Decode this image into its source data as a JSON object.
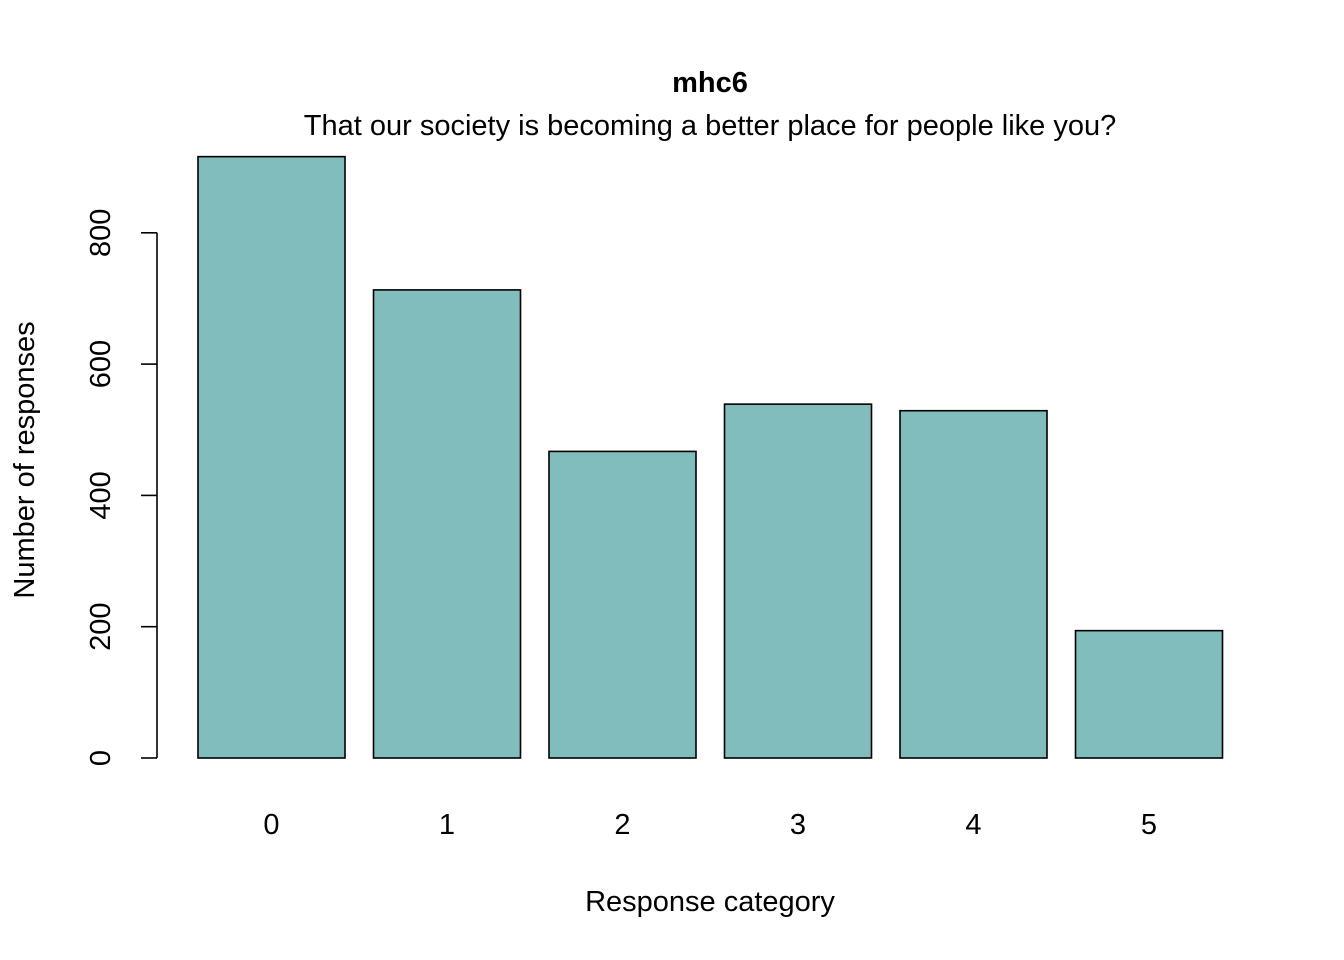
{
  "chart_data": {
    "type": "bar",
    "title": "mhc6",
    "subtitle": "That our society is becoming a better place for people like you?",
    "xlabel": "Response category",
    "ylabel": "Number of responses",
    "categories": [
      "0",
      "1",
      "2",
      "3",
      "4",
      "5"
    ],
    "values": [
      916,
      713,
      467,
      539,
      529,
      194
    ],
    "ylim": [
      0,
      916
    ],
    "yticks": [
      0,
      200,
      400,
      600,
      800
    ],
    "bar_color": "#80BDBC",
    "grid": false,
    "legend": "none"
  }
}
